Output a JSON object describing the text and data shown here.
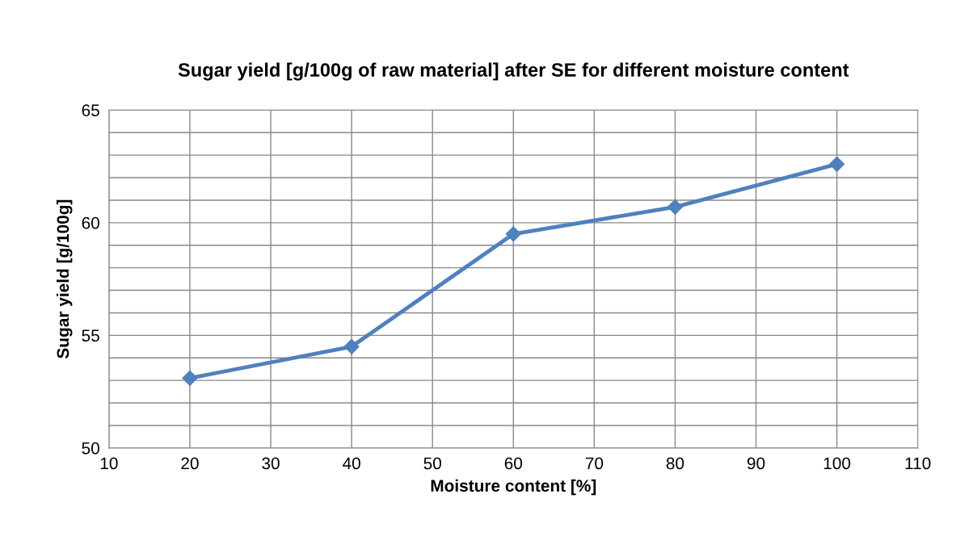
{
  "chart_data": {
    "type": "line",
    "title": "Sugar yield [g/100g of raw material] after SE for different moisture content",
    "xlabel": "Moisture content [%]",
    "ylabel": "Sugar yield [g/100g]",
    "x": [
      20,
      40,
      60,
      80,
      100
    ],
    "series": [
      {
        "color": "#4f81bd",
        "values": [
          53.1,
          54.5,
          59.5,
          60.7,
          62.6
        ]
      }
    ],
    "xlim": [
      10,
      110
    ],
    "xticks": [
      10,
      20,
      30,
      40,
      50,
      60,
      70,
      80,
      90,
      100,
      110
    ],
    "ylim": [
      50,
      65
    ],
    "yticks": [
      50,
      {
        "value": 51,
        "label": null
      },
      {
        "value": 52,
        "label": null
      },
      {
        "value": 53,
        "label": null
      },
      {
        "value": 54,
        "label": null
      },
      55,
      {
        "value": 56,
        "label": null
      },
      {
        "value": 57,
        "label": null
      },
      {
        "value": 58,
        "label": null
      },
      {
        "value": 59,
        "label": null
      },
      60,
      {
        "value": 61,
        "label": null
      },
      {
        "value": 62,
        "label": null
      },
      {
        "value": 63,
        "label": null
      },
      {
        "value": 64,
        "label": null
      },
      65
    ],
    "grid": true,
    "marker": "diamond",
    "line_style": "solid",
    "legend": false
  }
}
